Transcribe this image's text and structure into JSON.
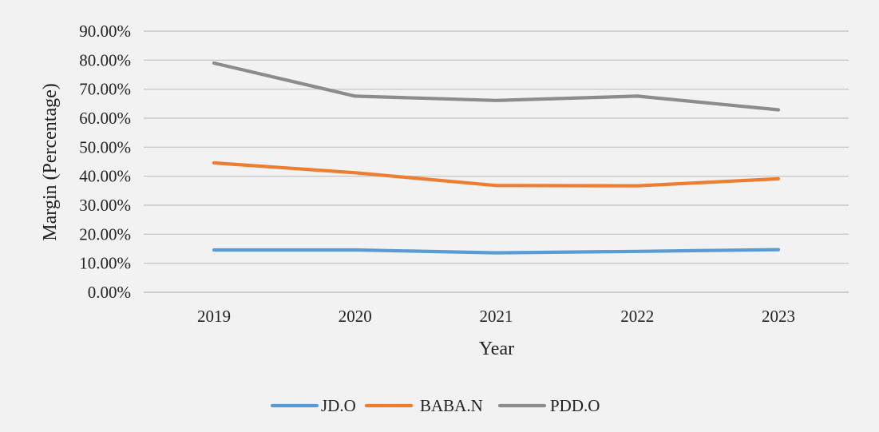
{
  "chart_data": {
    "type": "line",
    "title": "",
    "xlabel": "Year",
    "ylabel": "Margin (Percentage)",
    "categories": [
      "2019",
      "2020",
      "2021",
      "2022",
      "2023"
    ],
    "ylim": [
      0,
      90
    ],
    "yticks": [
      0,
      10,
      20,
      30,
      40,
      50,
      60,
      70,
      80,
      90
    ],
    "ytick_labels": [
      "0.00%",
      "10.00%",
      "20.00%",
      "30.00%",
      "40.00%",
      "50.00%",
      "60.00%",
      "70.00%",
      "80.00%",
      "90.00%"
    ],
    "grid": true,
    "legend_position": "bottom-center",
    "series": [
      {
        "name": "JD.O",
        "color": "#5b9bd5",
        "values": [
          14.6,
          14.6,
          13.6,
          14.1,
          14.7
        ]
      },
      {
        "name": "BABA.N",
        "color": "#ed7d31",
        "values": [
          44.6,
          41.2,
          36.8,
          36.7,
          39.1
        ]
      },
      {
        "name": "PDD.O",
        "color": "#8c8c8c",
        "values": [
          79.0,
          67.6,
          66.1,
          67.6,
          62.9
        ]
      }
    ]
  }
}
